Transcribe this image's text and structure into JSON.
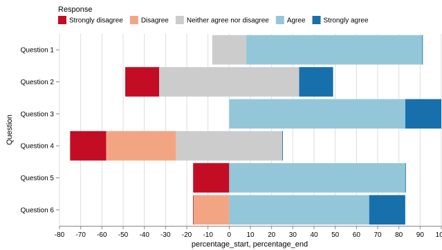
{
  "chart_data": {
    "type": "bar",
    "orientation": "horizontal-stacked-diverging",
    "xlabel": "percentage_start, percentage_end",
    "ylabel": "Question",
    "xlim": [
      -80,
      100
    ],
    "xticks": [
      -80,
      -70,
      -60,
      -50,
      -40,
      -30,
      -20,
      -10,
      0,
      10,
      20,
      30,
      40,
      50,
      60,
      70,
      80,
      90,
      100
    ],
    "grid": true,
    "legend": {
      "title": "Response",
      "placement": "top-left",
      "entries": [
        {
          "label": "Strongly disagree",
          "color": "#c30d24"
        },
        {
          "label": "Disagree",
          "color": "#f3a583"
        },
        {
          "label": "Neither agree nor disagree",
          "color": "#cccccc"
        },
        {
          "label": "Agree",
          "color": "#94c6da"
        },
        {
          "label": "Strongly agree",
          "color": "#1770ab"
        }
      ]
    },
    "categories": [
      "Question 1",
      "Question 2",
      "Question 3",
      "Question 4",
      "Question 5",
      "Question 6"
    ],
    "bars": [
      {
        "question": "Question 1",
        "response": "Neither agree nor disagree",
        "start": -8,
        "end": 8
      },
      {
        "question": "Question 1",
        "response": "Agree",
        "start": 8,
        "end": 91
      },
      {
        "question": "Question 1",
        "response": "Strongly agree",
        "start": 91,
        "end": 91.3
      },
      {
        "question": "Question 2",
        "response": "Strongly disagree",
        "start": -49,
        "end": -33
      },
      {
        "question": "Question 2",
        "response": "Neither agree nor disagree",
        "start": -33,
        "end": 33
      },
      {
        "question": "Question 2",
        "response": "Strongly agree",
        "start": 33,
        "end": 49
      },
      {
        "question": "Question 3",
        "response": "Agree",
        "start": 0,
        "end": 83
      },
      {
        "question": "Question 3",
        "response": "Strongly agree",
        "start": 83,
        "end": 100
      },
      {
        "question": "Question 4",
        "response": "Strongly disagree",
        "start": -75,
        "end": -58
      },
      {
        "question": "Question 4",
        "response": "Disagree",
        "start": -58,
        "end": -25
      },
      {
        "question": "Question 4",
        "response": "Neither agree nor disagree",
        "start": -25,
        "end": 25
      },
      {
        "question": "Question 4",
        "response": "Strongly agree",
        "start": 25,
        "end": 25.3
      },
      {
        "question": "Question 5",
        "response": "Strongly disagree",
        "start": -17,
        "end": 0
      },
      {
        "question": "Question 5",
        "response": "Agree",
        "start": 0,
        "end": 83
      },
      {
        "question": "Question 5",
        "response": "Strongly agree",
        "start": 83,
        "end": 83.3
      },
      {
        "question": "Question 6",
        "response": "Strongly disagree",
        "start": -17,
        "end": -16.7
      },
      {
        "question": "Question 6",
        "response": "Disagree",
        "start": -16.7,
        "end": 0
      },
      {
        "question": "Question 6",
        "response": "Agree",
        "start": 0,
        "end": 66
      },
      {
        "question": "Question 6",
        "response": "Strongly agree",
        "start": 66,
        "end": 83
      }
    ]
  }
}
